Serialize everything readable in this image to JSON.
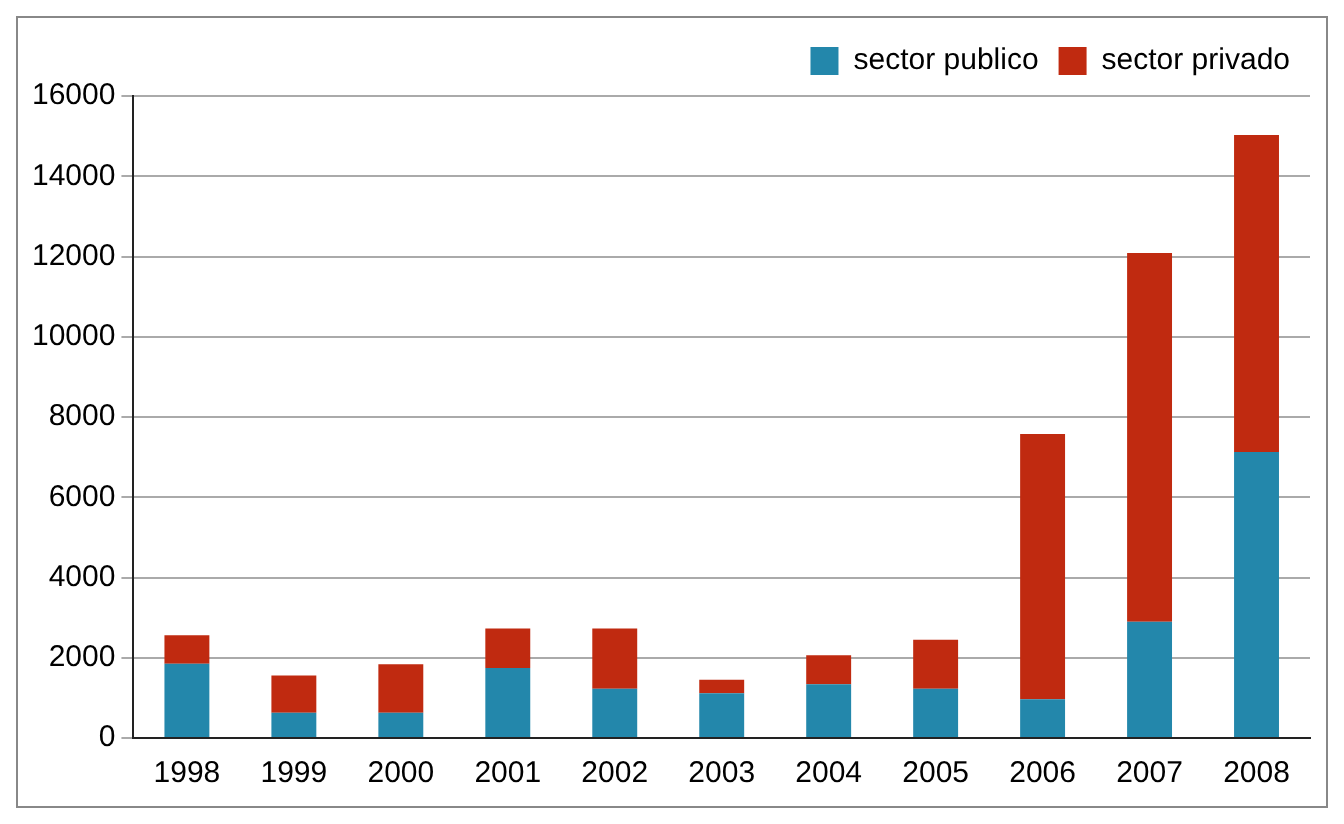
{
  "chart_data": {
    "type": "bar",
    "stacked": true,
    "categories": [
      "1998",
      "1999",
      "2000",
      "2001",
      "2002",
      "2003",
      "2004",
      "2005",
      "2006",
      "2007",
      "2008"
    ],
    "series": [
      {
        "name": "sector publico",
        "color": "#2387ab",
        "values": [
          1850,
          630,
          630,
          1745,
          1225,
          1115,
          1340,
          1225,
          965,
          2895,
          7130
        ]
      },
      {
        "name": "sector privado",
        "color": "#c02a10",
        "values": [
          710,
          930,
          1210,
          985,
          1505,
          335,
          720,
          1225,
          6610,
          9190,
          7900
        ]
      }
    ],
    "ylim": [
      0,
      16000
    ],
    "yticks": [
      0,
      2000,
      4000,
      6000,
      8000,
      10000,
      12000,
      14000,
      16000
    ],
    "grid": "y",
    "legend": "top right"
  }
}
